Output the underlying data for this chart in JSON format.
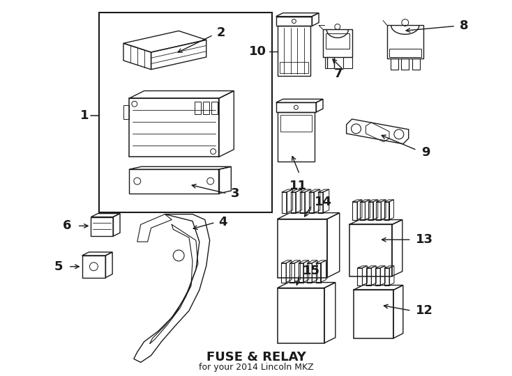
{
  "bg_color": "#ffffff",
  "line_color": "#1a1a1a",
  "title": "FUSE & RELAY",
  "subtitle": "for your 2014 Lincoln MKZ",
  "fig_width": 7.34,
  "fig_height": 5.4,
  "dpi": 100
}
